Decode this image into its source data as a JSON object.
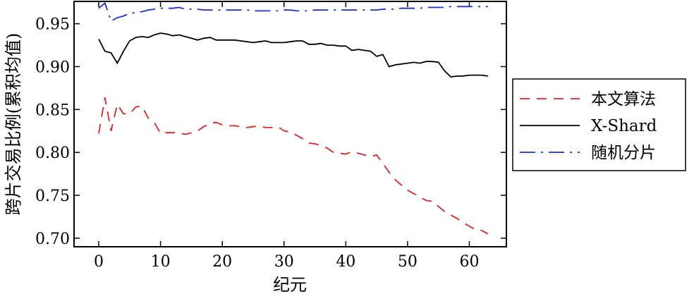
{
  "chart_data": {
    "type": "line",
    "title": "",
    "xlabel": "纪元",
    "ylabel": "跨片交易比例(累积均值)",
    "xlim": [
      -4,
      66
    ],
    "ylim": [
      0.69,
      0.976
    ],
    "xticks": [
      0,
      10,
      20,
      30,
      40,
      50,
      60
    ],
    "yticks": [
      0.7,
      0.75,
      0.8,
      0.85,
      0.9,
      0.95
    ],
    "xtick_labels": [
      "0",
      "10",
      "20",
      "30",
      "40",
      "50",
      "60"
    ],
    "ytick_labels": [
      "0.70",
      "0.75",
      "0.80",
      "0.85",
      "0.90",
      "0.95"
    ],
    "grid": false,
    "legend_position": "right-outside",
    "series": [
      {
        "name": "本文算法",
        "color": "#d62728",
        "dash": "dashed",
        "x": [
          0,
          1,
          2,
          3,
          4,
          5,
          6,
          7,
          8,
          9,
          10,
          11,
          12,
          13,
          14,
          15,
          16,
          17,
          18,
          19,
          20,
          21,
          22,
          23,
          24,
          25,
          26,
          27,
          28,
          29,
          30,
          31,
          32,
          33,
          34,
          35,
          36,
          37,
          38,
          39,
          40,
          41,
          42,
          43,
          44,
          45,
          46,
          47,
          48,
          49,
          50,
          51,
          52,
          53,
          54,
          55,
          56,
          57,
          58,
          59,
          60,
          61,
          62,
          63
        ],
        "y": [
          0.822,
          0.864,
          0.825,
          0.856,
          0.845,
          0.845,
          0.853,
          0.854,
          0.84,
          0.835,
          0.822,
          0.823,
          0.823,
          0.823,
          0.821,
          0.823,
          0.825,
          0.83,
          0.834,
          0.835,
          0.832,
          0.831,
          0.831,
          0.83,
          0.829,
          0.83,
          0.831,
          0.829,
          0.829,
          0.83,
          0.825,
          0.824,
          0.82,
          0.816,
          0.811,
          0.81,
          0.808,
          0.805,
          0.8,
          0.799,
          0.798,
          0.801,
          0.799,
          0.797,
          0.795,
          0.797,
          0.787,
          0.777,
          0.768,
          0.762,
          0.756,
          0.752,
          0.748,
          0.744,
          0.743,
          0.737,
          0.731,
          0.727,
          0.723,
          0.718,
          0.714,
          0.71,
          0.709,
          0.705
        ]
      },
      {
        "name": "X-Shard",
        "color": "#000000",
        "dash": "solid",
        "x": [
          0,
          1,
          2,
          3,
          4,
          5,
          6,
          7,
          8,
          9,
          10,
          11,
          12,
          13,
          14,
          15,
          16,
          17,
          18,
          19,
          20,
          21,
          22,
          23,
          24,
          25,
          26,
          27,
          28,
          29,
          30,
          31,
          32,
          33,
          34,
          35,
          36,
          37,
          38,
          39,
          40,
          41,
          42,
          43,
          44,
          45,
          46,
          47,
          48,
          49,
          50,
          51,
          52,
          53,
          54,
          55,
          56,
          57,
          58,
          59,
          60,
          61,
          62,
          63
        ],
        "y": [
          0.932,
          0.918,
          0.916,
          0.904,
          0.918,
          0.93,
          0.934,
          0.935,
          0.934,
          0.937,
          0.939,
          0.938,
          0.936,
          0.937,
          0.935,
          0.933,
          0.931,
          0.933,
          0.934,
          0.931,
          0.931,
          0.931,
          0.931,
          0.93,
          0.929,
          0.928,
          0.929,
          0.93,
          0.928,
          0.928,
          0.928,
          0.929,
          0.93,
          0.93,
          0.926,
          0.926,
          0.927,
          0.925,
          0.925,
          0.924,
          0.924,
          0.919,
          0.92,
          0.919,
          0.918,
          0.912,
          0.914,
          0.9,
          0.902,
          0.903,
          0.904,
          0.905,
          0.904,
          0.906,
          0.906,
          0.905,
          0.895,
          0.888,
          0.889,
          0.889,
          0.89,
          0.89,
          0.89,
          0.889
        ]
      },
      {
        "name": "随机分片",
        "color": "#1f30c8",
        "dash": "dashdot",
        "x": [
          0,
          1,
          2,
          3,
          4,
          5,
          6,
          7,
          8,
          9,
          10,
          11,
          12,
          13,
          14,
          15,
          16,
          17,
          18,
          19,
          20,
          21,
          22,
          23,
          24,
          25,
          26,
          27,
          28,
          29,
          30,
          31,
          32,
          33,
          34,
          35,
          36,
          37,
          38,
          39,
          40,
          41,
          42,
          43,
          44,
          45,
          46,
          47,
          48,
          49,
          50,
          51,
          52,
          53,
          54,
          55,
          56,
          57,
          58,
          59,
          60,
          61,
          62,
          63
        ],
        "y": [
          0.968,
          0.974,
          0.953,
          0.957,
          0.959,
          0.962,
          0.963,
          0.964,
          0.966,
          0.967,
          0.968,
          0.968,
          0.968,
          0.969,
          0.967,
          0.967,
          0.967,
          0.966,
          0.966,
          0.966,
          0.966,
          0.966,
          0.966,
          0.966,
          0.966,
          0.965,
          0.965,
          0.965,
          0.965,
          0.965,
          0.966,
          0.966,
          0.965,
          0.965,
          0.965,
          0.966,
          0.966,
          0.966,
          0.966,
          0.966,
          0.966,
          0.966,
          0.966,
          0.966,
          0.966,
          0.966,
          0.967,
          0.967,
          0.967,
          0.968,
          0.968,
          0.968,
          0.968,
          0.969,
          0.969,
          0.969,
          0.969,
          0.97,
          0.97,
          0.97,
          0.97,
          0.97,
          0.97,
          0.97
        ]
      }
    ]
  }
}
